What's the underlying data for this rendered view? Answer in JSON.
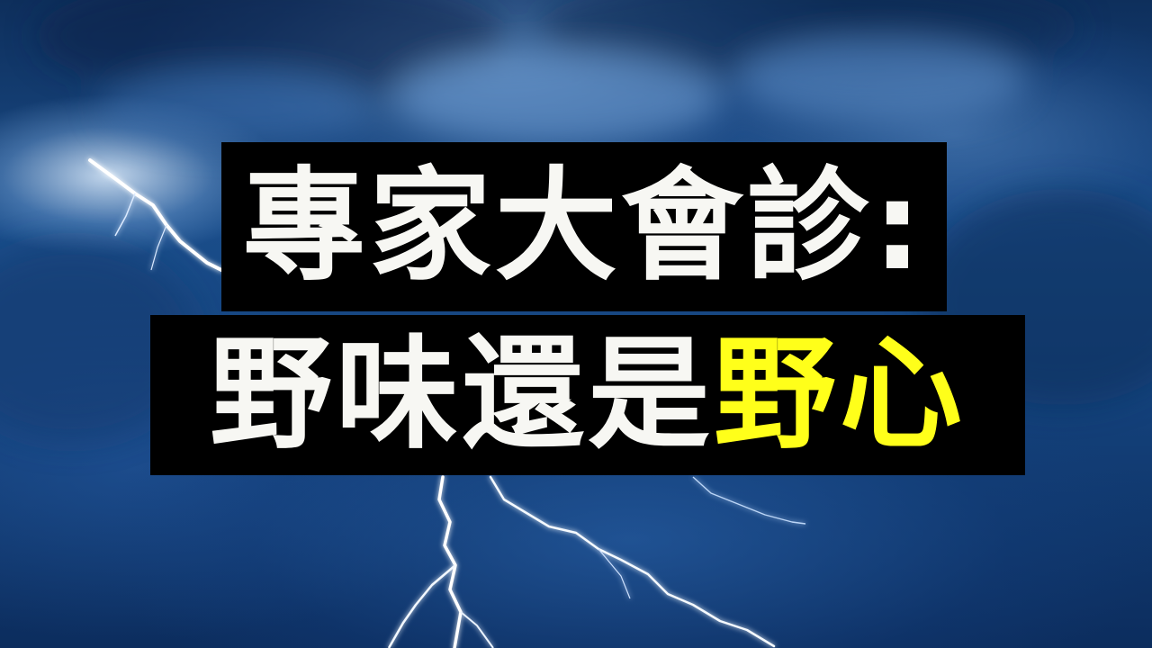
{
  "title": {
    "line1": "專家大會診:",
    "line2_prefix": "野味還是",
    "line2_highlight": "野心"
  },
  "colors": {
    "text": "#f7f7f3",
    "highlight": "#ffff1a",
    "caption_background": "#000000"
  }
}
